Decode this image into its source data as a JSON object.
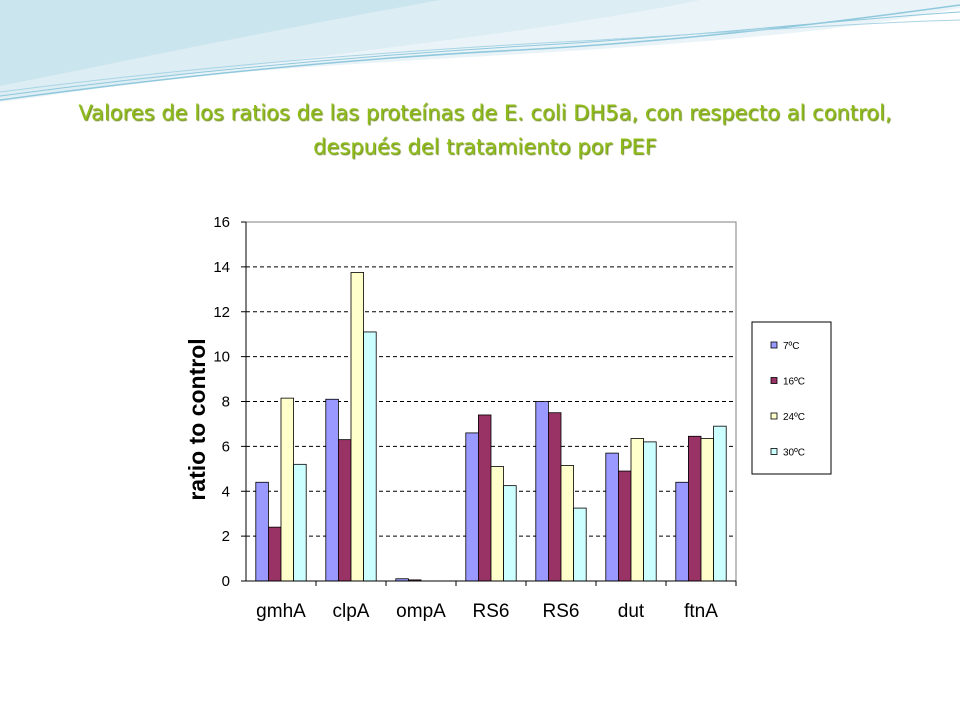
{
  "slide": {
    "title_line1": "Valores de los ratios de las proteínas de E. coli DH5a, con respecto al control,",
    "title_line2": "después del tratamiento por PEF"
  },
  "colors": {
    "title": "#8fbc1a",
    "wave": "#8fc8dc",
    "series": [
      "#9999ff",
      "#993366",
      "#ffffcc",
      "#ccffff"
    ],
    "plot_border": "#808080",
    "grid": "#000000"
  },
  "chart_data": {
    "type": "bar",
    "title": "",
    "xlabel": "",
    "ylabel": "ratio to control",
    "ylim": [
      0,
      16
    ],
    "yticks": [
      0,
      2,
      4,
      6,
      8,
      10,
      12,
      14,
      16
    ],
    "grid": "dashed horizontal",
    "legend_position": "right",
    "categories": [
      "gmhA",
      "clpA",
      "ompA",
      "RS6",
      "RS6",
      "dut",
      "ftnA"
    ],
    "series": [
      {
        "name": "7ºC",
        "values": [
          4.4,
          8.1,
          0.1,
          6.6,
          8.0,
          5.7,
          4.4
        ]
      },
      {
        "name": "16ºC",
        "values": [
          2.4,
          6.3,
          0.05,
          7.4,
          7.5,
          4.9,
          6.45
        ]
      },
      {
        "name": "24ºC",
        "values": [
          8.15,
          13.75,
          0,
          5.1,
          5.15,
          6.35,
          6.35
        ]
      },
      {
        "name": "30ºC",
        "values": [
          5.2,
          11.1,
          0,
          4.25,
          3.25,
          6.2,
          6.9
        ]
      }
    ]
  }
}
